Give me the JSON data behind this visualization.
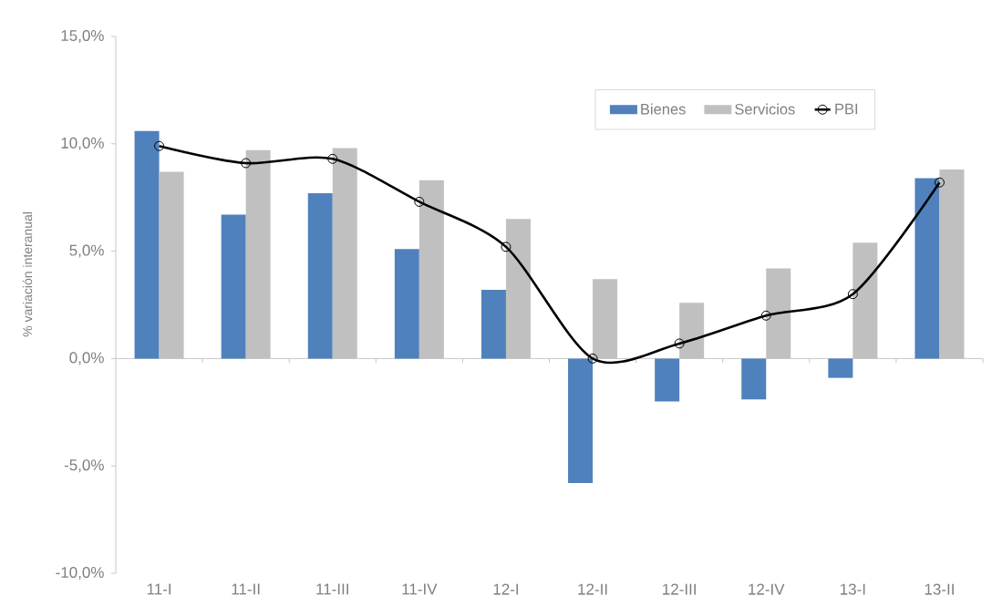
{
  "chart_data": {
    "type": "bar",
    "ylabel": "% variación interanual",
    "categories": [
      "11-I",
      "11-II",
      "11-III",
      "11-IV",
      "12-I",
      "12-II",
      "12-III",
      "12-IV",
      "13-I",
      "13-II"
    ],
    "ylim": [
      -10,
      15
    ],
    "yticks": [
      {
        "value": -10,
        "label": "-10,0%"
      },
      {
        "value": -5,
        "label": "-5,0%"
      },
      {
        "value": 0,
        "label": "0,0%"
      },
      {
        "value": 5,
        "label": "5,0%"
      },
      {
        "value": 10,
        "label": "10,0%"
      },
      {
        "value": 15,
        "label": "15,0%"
      }
    ],
    "series": [
      {
        "name": "Bienes",
        "color": "#4f81bd",
        "values": [
          10.6,
          6.7,
          7.7,
          5.1,
          3.2,
          -5.8,
          -2.0,
          -1.9,
          -0.9,
          8.4
        ]
      },
      {
        "name": "Servicios",
        "color": "#c0c0c0",
        "values": [
          8.7,
          9.7,
          9.8,
          8.3,
          6.5,
          3.7,
          2.6,
          4.2,
          5.4,
          8.8
        ]
      },
      {
        "name": "PBI",
        "type": "line",
        "color": "#000000",
        "marker": "circle",
        "line_style": "solid",
        "values": [
          9.9,
          9.1,
          9.3,
          7.3,
          5.2,
          0.0,
          0.7,
          2.0,
          3.0,
          8.2
        ]
      }
    ],
    "legend": "top right"
  }
}
